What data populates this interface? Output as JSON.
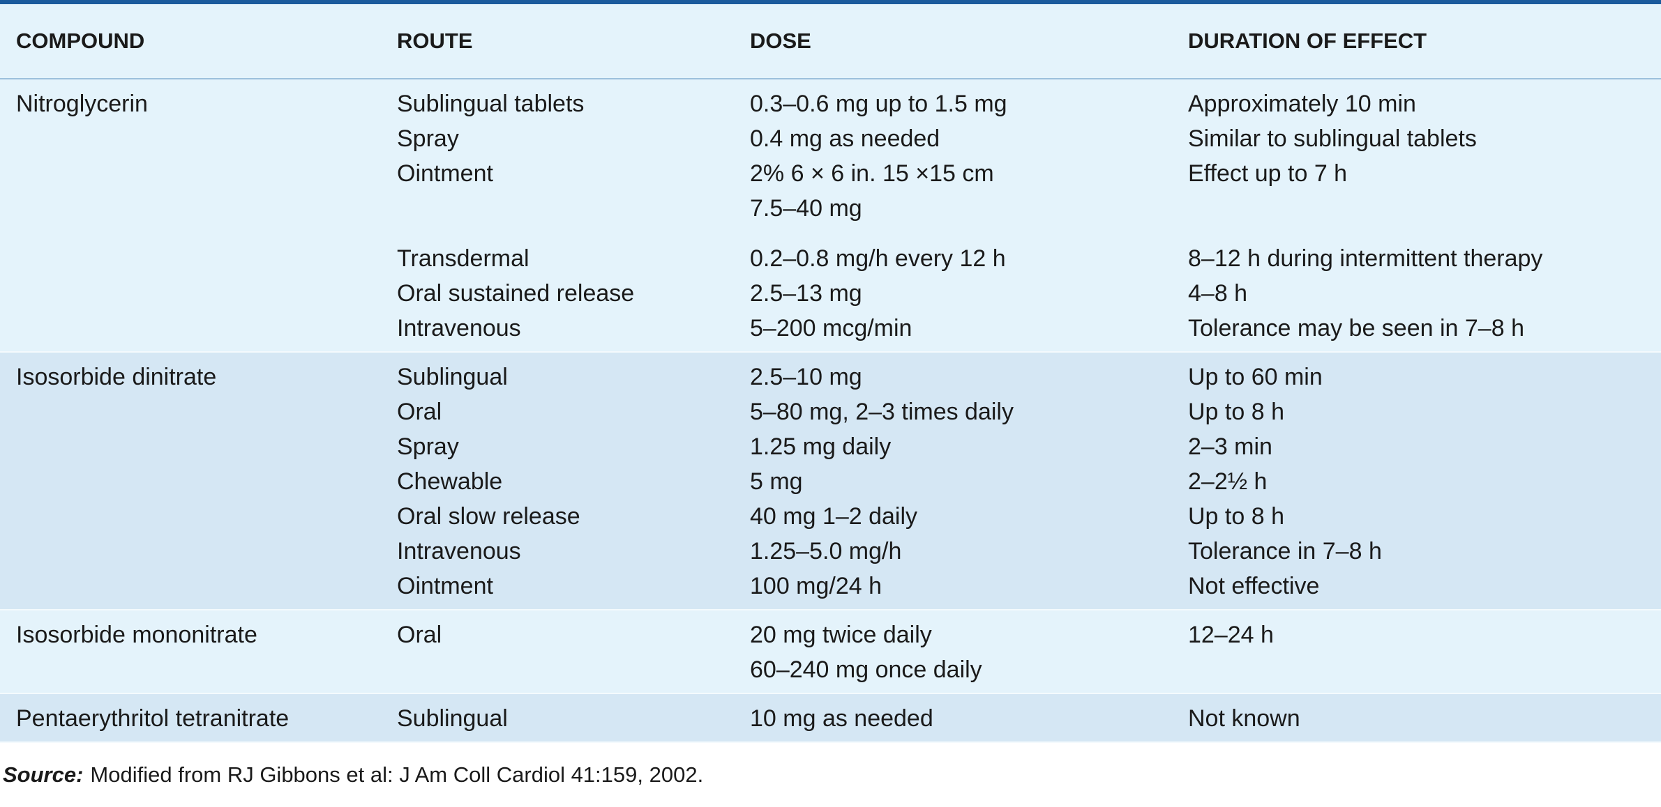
{
  "table": {
    "header": [
      "COMPOUND",
      "ROUTE",
      "DOSE",
      "DURATION OF EFFECT"
    ],
    "rows": [
      {
        "compound": "Nitroglycerin",
        "entries": [
          {
            "route": "Sublingual tablets",
            "dose": [
              "0.3–0.6 mg up to 1.5 mg"
            ],
            "duration": "Approximately 10 min"
          },
          {
            "route": "Spray",
            "dose": [
              "0.4 mg as needed"
            ],
            "duration": "Similar to sublingual tablets"
          },
          {
            "route": "Ointment",
            "dose": [
              "2% 6 × 6 in. 15 ×15 cm",
              "7.5–40 mg"
            ],
            "duration": "Effect up to 7 h"
          },
          {
            "route": "Transdermal",
            "dose": [
              "0.2–0.8 mg/h every 12 h"
            ],
            "duration": "8–12 h during intermittent therapy"
          },
          {
            "route": "Oral sustained release",
            "dose": [
              "2.5–13 mg"
            ],
            "duration": "4–8 h"
          },
          {
            "route": "Intravenous",
            "dose": [
              "5–200 mcg/min"
            ],
            "duration": "Tolerance may be seen in 7–8 h"
          }
        ]
      },
      {
        "compound": "Isosorbide dinitrate",
        "entries": [
          {
            "route": "Sublingual",
            "dose": [
              "2.5–10 mg"
            ],
            "duration": "Up to 60 min"
          },
          {
            "route": "Oral",
            "dose": [
              "5–80 mg, 2–3 times daily"
            ],
            "duration": "Up to 8 h"
          },
          {
            "route": "Spray",
            "dose": [
              "1.25 mg daily"
            ],
            "duration": "2–3 min"
          },
          {
            "route": "Chewable",
            "dose": [
              "5 mg"
            ],
            "duration": "2–2½ h"
          },
          {
            "route": "Oral slow release",
            "dose": [
              "40 mg 1–2 daily"
            ],
            "duration": "Up to 8 h"
          },
          {
            "route": "Intravenous",
            "dose": [
              "1.25–5.0 mg/h"
            ],
            "duration": "Tolerance in 7–8 h"
          },
          {
            "route": "Ointment",
            "dose": [
              "100 mg/24 h"
            ],
            "duration": "Not effective"
          }
        ]
      },
      {
        "compound": "Isosorbide mononitrate",
        "entries": [
          {
            "route": "Oral",
            "dose": [
              "20 mg twice daily",
              "60–240 mg once daily"
            ],
            "duration": "12–24 h"
          }
        ]
      },
      {
        "compound": "Pentaerythritol tetranitrate",
        "entries": [
          {
            "route": "Sublingual",
            "dose": [
              "10 mg as needed"
            ],
            "duration": "Not known"
          }
        ]
      }
    ]
  },
  "source": {
    "label": "Source:",
    "text": "Modified from RJ Gibbons et al: J Am Coll Cardiol 41:159, 2002."
  }
}
